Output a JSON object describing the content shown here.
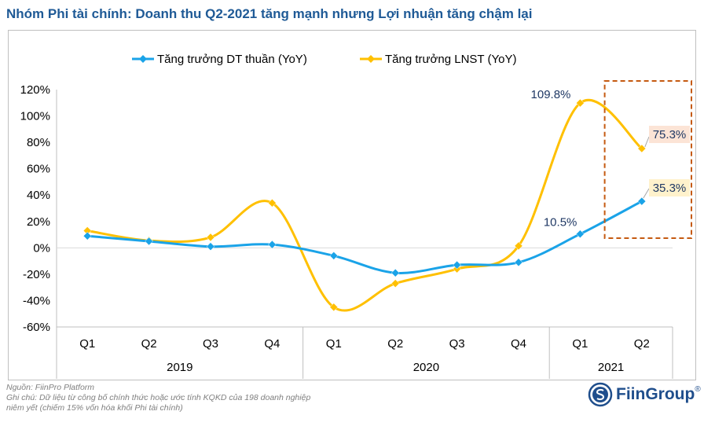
{
  "title": "Nhóm Phi tài chính: Doanh thu Q2-2021 tăng mạnh nhưng Lợi nhuận tăng chậm lại",
  "chart_data": {
    "type": "line",
    "categories": [
      "Q1",
      "Q2",
      "Q3",
      "Q4",
      "Q1",
      "Q2",
      "Q3",
      "Q4",
      "Q1",
      "Q2"
    ],
    "years": [
      {
        "label": "2019",
        "start": 0,
        "end": 3
      },
      {
        "label": "2020",
        "start": 4,
        "end": 7
      },
      {
        "label": "2021",
        "start": 8,
        "end": 9
      }
    ],
    "ylim": [
      -60,
      120
    ],
    "yticks": [
      -60,
      -40,
      -20,
      0,
      20,
      40,
      60,
      80,
      100,
      120
    ],
    "ytick_labels": [
      "-60%",
      "-40%",
      "-20%",
      "0%",
      "20%",
      "40%",
      "60%",
      "80%",
      "100%",
      "120%"
    ],
    "series": [
      {
        "name": "Tăng trưởng DT thuần (YoY)",
        "color": "#1aa3e8",
        "marker": "diamond",
        "values": [
          9,
          5,
          1,
          2.5,
          -6,
          -19,
          -13,
          -11,
          10.5,
          35.3
        ]
      },
      {
        "name": "Tăng trưởng LNST (YoY)",
        "color": "#ffc000",
        "marker": "diamond",
        "values": [
          13,
          5.5,
          8,
          34,
          -45,
          -27,
          -16,
          1.5,
          109.8,
          75.3
        ]
      }
    ],
    "annotations": [
      {
        "text": "109.8%",
        "series": 1,
        "index": 8
      },
      {
        "text": "75.3%",
        "series": 1,
        "index": 9
      },
      {
        "text": "10.5%",
        "series": 0,
        "index": 8
      },
      {
        "text": "35.3%",
        "series": 0,
        "index": 9
      }
    ],
    "legend_position": "top",
    "grid": false
  },
  "notes": {
    "source": "Nguồn: FiinPro Platform",
    "note_line1": "Ghi chú: Dữ liệu từ công bố chính thức hoặc ước tính KQKD của 198 doanh nghiệp",
    "note_line2": "niêm yết (chiếm 15% vốn hóa khối Phi tài chính)"
  },
  "logo": {
    "text": "FiinGroup",
    "mark": "®",
    "color": "#1f4e8c"
  }
}
